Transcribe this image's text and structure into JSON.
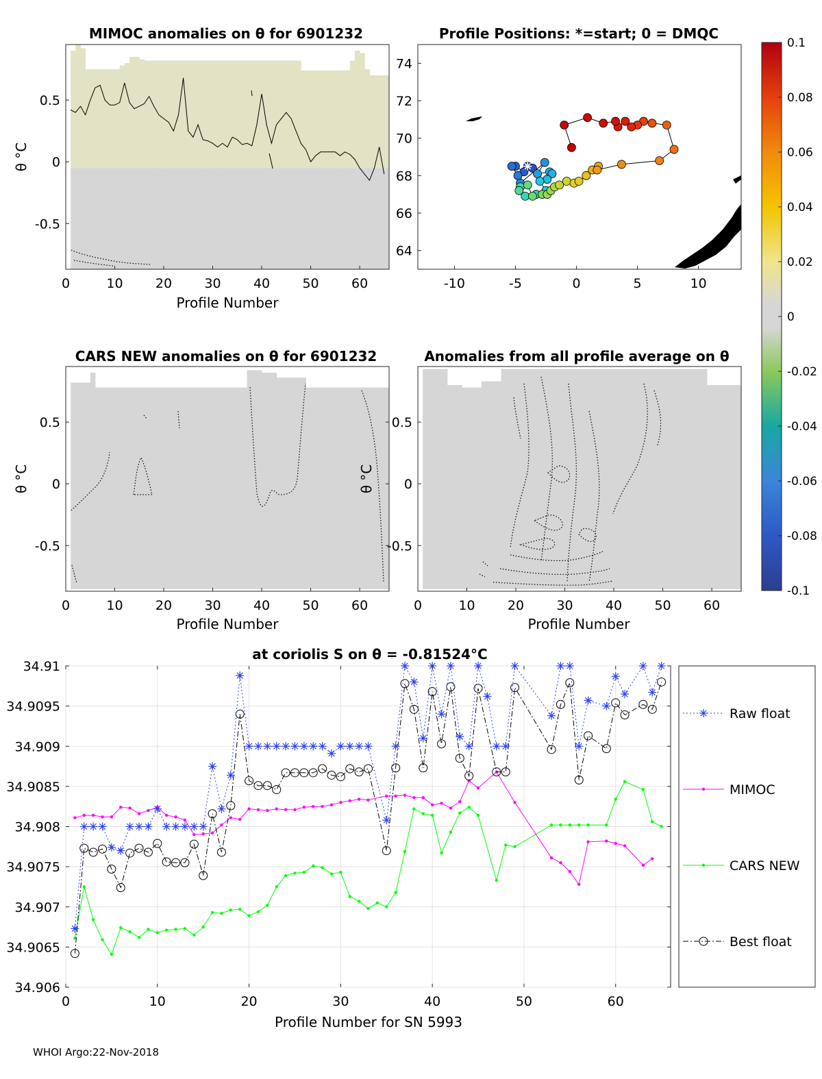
{
  "footer": "WHOI Argo:22-Nov-2018",
  "colors": {
    "raw_float": "#2a3ff0",
    "mimoc": "#ff00ff",
    "cars_new": "#00ff00",
    "best_float": "#000000",
    "anomaly_field": "#d6d6d6",
    "anomaly_field_warm": "#e2e2c4",
    "grid": "#e3e3e3"
  },
  "chart_data": [
    {
      "id": "mimoc-panel",
      "type": "heatmap",
      "title": "MIMOC anomalies on θ  for 6901232",
      "xlabel": "Profile Number",
      "ylabel": "θ °C",
      "xlim": [
        0,
        66
      ],
      "ylim": [
        -0.87,
        0.95
      ],
      "xticks": [
        "0",
        "10",
        "20",
        "30",
        "40",
        "50",
        "60"
      ],
      "yticks": [
        "0.5",
        "0",
        "-0.5"
      ],
      "ytick_values": [
        0.5,
        0,
        -0.5
      ],
      "xtick_values": [
        0,
        10,
        20,
        30,
        40,
        50,
        60
      ],
      "top_theta": [
        0.9,
        0.95,
        0.92,
        0.75,
        0.75,
        0.75,
        0.75,
        0.75,
        0.75,
        0.75,
        0.78,
        0.8,
        0.85,
        0.85,
        0.83,
        0.82,
        0.82,
        0.82,
        0.82,
        0.82,
        0.82,
        0.82,
        0.82,
        0.82,
        0.82,
        0.82,
        0.82,
        0.82,
        0.82,
        0.82,
        0.82,
        0.82,
        0.82,
        0.82,
        0.82,
        0.82,
        0.82,
        0.82,
        0.82,
        0.82,
        0.82,
        0.82,
        0.82,
        0.82,
        0.82,
        0.82,
        0.82,
        0.74,
        0.74,
        0.74,
        0.74,
        0.74,
        0.74,
        0.74,
        0.74,
        0.74,
        0.74,
        0.82,
        0.9,
        0.88,
        0.75,
        0.7,
        0.7,
        0.7,
        0.7
      ],
      "contour_line": [
        0.42,
        0.4,
        0.45,
        0.38,
        0.5,
        0.6,
        0.62,
        0.5,
        0.46,
        0.46,
        0.48,
        0.64,
        0.48,
        0.43,
        0.45,
        0.47,
        0.53,
        0.45,
        0.38,
        0.35,
        0.32,
        0.25,
        0.38,
        0.68,
        0.25,
        0.2,
        0.3,
        0.18,
        0.17,
        0.15,
        0.12,
        0.15,
        0.12,
        0.2,
        0.18,
        0.14,
        0.15,
        0.13,
        0.3,
        0.55,
        0.3,
        0.15,
        0.3,
        0.35,
        0.4,
        0.35,
        0.25,
        0.15,
        0.1,
        0.0,
        0.05,
        0.08,
        0.08,
        0.08,
        0.08,
        0.05,
        0.08,
        0.06,
        0.02,
        -0.05,
        -0.1,
        -0.15,
        -0.05,
        0.12,
        -0.1
      ]
    },
    {
      "id": "position-panel",
      "type": "scatter",
      "title": "Profile Positions: *=start; 0 = DMQC",
      "xlim": [
        -13,
        13.5
      ],
      "ylim": [
        63,
        75
      ],
      "xticks": [
        "-10",
        "-5",
        "0",
        "5",
        "10"
      ],
      "xtick_values": [
        -10,
        -5,
        0,
        5,
        10
      ],
      "yticks": [
        "64",
        "66",
        "68",
        "70",
        "72",
        "74"
      ],
      "ytick_values": [
        64,
        66,
        68,
        70,
        72,
        74
      ],
      "start": [
        -4,
        68.5
      ],
      "lon": [
        -4.0,
        -3.6,
        -4.3,
        -5.0,
        -5.3,
        -4.8,
        -4.6,
        -2.6,
        -3.2,
        -2.2,
        -2.0,
        -2.4,
        -3.0,
        -2.5,
        -3.3,
        -4.2,
        -4.6,
        -4.7,
        -4.0,
        -3.6,
        -2.8,
        -2.4,
        -2.1,
        -1.8,
        -1.4,
        -0.8,
        -0.2,
        0.2,
        0.8,
        1.3,
        1.8,
        1.7,
        3.7,
        6.8,
        8.0,
        7.4,
        6.2,
        5.5,
        5.0,
        4.5,
        4.0,
        3.4,
        3.2,
        2.2,
        0.9,
        -1.0,
        -0.4
      ],
      "lat": [
        68.5,
        68.4,
        68.2,
        68.5,
        68.5,
        68.0,
        67.6,
        68.7,
        68.1,
        68.2,
        68.1,
        67.8,
        67.7,
        67.2,
        67.0,
        66.9,
        67.4,
        67.2,
        67.5,
        66.9,
        67.0,
        67.0,
        67.2,
        67.4,
        67.5,
        67.7,
        67.6,
        67.7,
        68.0,
        68.3,
        68.5,
        68.3,
        68.6,
        68.8,
        69.4,
        70.7,
        70.8,
        70.9,
        70.7,
        70.6,
        70.9,
        70.6,
        70.9,
        70.8,
        71.1,
        70.7,
        69.5
      ],
      "colorbar": {
        "min": -0.1,
        "max": 0.1,
        "ticks": [
          "0.1",
          "0.08",
          "0.06",
          "0.04",
          "0.02",
          "0",
          "-0.02",
          "-0.04",
          "-0.06",
          "-0.08",
          "-0.1"
        ],
        "tick_values": [
          0.1,
          0.08,
          0.06,
          0.04,
          0.02,
          0,
          -0.02,
          -0.04,
          -0.06,
          -0.08,
          -0.1
        ]
      }
    },
    {
      "id": "cars-panel",
      "type": "heatmap",
      "title": "CARS NEW anomalies on θ for 6901232",
      "xlabel": "Profile Number",
      "ylabel": "θ °C",
      "xlim": [
        0,
        66
      ],
      "ylim": [
        -0.87,
        0.95
      ],
      "xticks": [
        "0",
        "10",
        "20",
        "30",
        "40",
        "50",
        "60"
      ],
      "xtick_values": [
        0,
        10,
        20,
        30,
        40,
        50,
        60
      ],
      "yticks": [
        "0.5",
        "0",
        "-0.5"
      ],
      "ytick_values": [
        0.5,
        0,
        -0.5
      ]
    },
    {
      "id": "avg-panel",
      "type": "heatmap",
      "title": "Anomalies from all profile average on θ",
      "xlabel": "Profile Number",
      "ylabel": "θ °C",
      "xlim": [
        0,
        66
      ],
      "ylim": [
        -0.87,
        0.95
      ],
      "xticks": [
        "0",
        "10",
        "20",
        "30",
        "40",
        "50",
        "60"
      ],
      "xtick_values": [
        0,
        10,
        20,
        30,
        40,
        50,
        60
      ],
      "yticks": [
        "0.5",
        "0",
        "-0.5"
      ],
      "ytick_values": [
        0.5,
        0,
        -0.5
      ]
    },
    {
      "id": "salinity-panel",
      "type": "line",
      "title": "at coriolis S on θ = -0.81524°C",
      "xlabel": "Profile Number for SN 5993",
      "ylabel": "",
      "xlim": [
        0,
        66
      ],
      "ylim": [
        34.906,
        34.91
      ],
      "xticks": [
        "0",
        "10",
        "20",
        "30",
        "40",
        "50",
        "60"
      ],
      "xtick_values": [
        0,
        10,
        20,
        30,
        40,
        50,
        60
      ],
      "yticks": [
        "34.91",
        "34.9095",
        "34.909",
        "34.9085",
        "34.908",
        "34.9075",
        "34.907",
        "34.9065",
        "34.906"
      ],
      "ytick_values": [
        34.91,
        34.9095,
        34.909,
        34.9085,
        34.908,
        34.9075,
        34.907,
        34.9065,
        34.906
      ],
      "grid": true,
      "legend": [
        "Raw float",
        "MIMOC",
        "CARS NEW",
        "Best float"
      ],
      "series": [
        {
          "name": "Raw float",
          "x": [
            1,
            2,
            3,
            4,
            5,
            6,
            7,
            8,
            9,
            10,
            11,
            12,
            13,
            14,
            15,
            16,
            17,
            18,
            19,
            20,
            21,
            22,
            23,
            24,
            25,
            26,
            27,
            28,
            29,
            30,
            31,
            32,
            33,
            35,
            36,
            37,
            38,
            39,
            40,
            41,
            42,
            43,
            44,
            45,
            46,
            47,
            48,
            49,
            53,
            54,
            55,
            56,
            57,
            59,
            60,
            61,
            63,
            64,
            65
          ],
          "y": [
            34.90673,
            34.908,
            34.908,
            34.908,
            34.90774,
            34.9077,
            34.908,
            34.908,
            34.908,
            34.90822,
            34.908,
            34.908,
            34.908,
            34.908,
            34.908,
            34.90875,
            34.90822,
            34.90864,
            34.90988,
            34.909,
            34.909,
            34.909,
            34.909,
            34.909,
            34.909,
            34.909,
            34.909,
            34.909,
            34.90891,
            34.909,
            34.909,
            34.909,
            34.909,
            34.90808,
            34.909,
            34.91,
            34.9098,
            34.9091,
            34.91,
            34.9094,
            34.91,
            34.90912,
            34.909,
            34.91,
            34.90962,
            34.909,
            34.909,
            34.91,
            34.90938,
            34.91,
            34.91,
            34.909,
            34.90957,
            34.9095,
            34.90987,
            34.90965,
            34.91,
            34.90967,
            34.91
          ]
        },
        {
          "name": "MIMOC",
          "x": [
            1,
            2,
            3,
            4,
            5,
            6,
            7,
            8,
            9,
            10,
            11,
            12,
            13,
            14,
            15,
            16,
            17,
            18,
            19,
            20,
            21,
            22,
            23,
            24,
            25,
            26,
            27,
            28,
            29,
            30,
            31,
            32,
            33,
            35,
            36,
            37,
            38,
            39,
            40,
            41,
            42,
            43,
            44,
            45,
            47,
            49,
            53,
            54,
            55,
            56,
            57,
            59,
            60,
            61,
            63,
            64
          ],
          "y": [
            34.90811,
            34.90814,
            34.90814,
            34.90812,
            34.90812,
            34.90824,
            34.90823,
            34.90816,
            34.9082,
            34.90824,
            34.90814,
            34.90812,
            34.90808,
            34.9079,
            34.90791,
            34.90792,
            34.90802,
            34.90811,
            34.90809,
            34.90822,
            34.90821,
            34.9082,
            34.90822,
            34.90821,
            34.90821,
            34.90824,
            34.90825,
            34.90825,
            34.90827,
            34.9083,
            34.90832,
            34.90834,
            34.90833,
            34.90838,
            34.90838,
            34.90839,
            34.90836,
            34.90836,
            34.90827,
            34.90829,
            34.90823,
            34.90831,
            34.90857,
            34.90848,
            34.90868,
            34.9083,
            34.90761,
            34.90755,
            34.90744,
            34.90728,
            34.90781,
            34.90782,
            34.90779,
            34.90776,
            34.90752,
            34.9076
          ]
        },
        {
          "name": "CARS NEW",
          "x": [
            1,
            2,
            3,
            4,
            5,
            6,
            7,
            8,
            9,
            10,
            11,
            12,
            13,
            14,
            15,
            16,
            17,
            18,
            19,
            20,
            21,
            22,
            23,
            24,
            25,
            26,
            27,
            28,
            29,
            30,
            31,
            32,
            33,
            34,
            35,
            36,
            37,
            38,
            39,
            40,
            41,
            42,
            43,
            44,
            45,
            47,
            48,
            49,
            53,
            54,
            55,
            56,
            57,
            59,
            60,
            61,
            63,
            64,
            65
          ],
          "y": [
            34.90661,
            34.90725,
            34.90684,
            34.90659,
            34.90641,
            34.90674,
            34.90669,
            34.90662,
            34.90672,
            34.90668,
            34.90671,
            34.90672,
            34.90673,
            34.90665,
            34.90675,
            34.90693,
            34.90692,
            34.90696,
            34.90697,
            34.90689,
            34.90694,
            34.90702,
            34.90725,
            34.90739,
            34.90742,
            34.90743,
            34.90751,
            34.90749,
            34.90741,
            34.90743,
            34.90713,
            34.90707,
            34.90698,
            34.90705,
            34.907,
            34.90718,
            34.90769,
            34.90822,
            34.90816,
            34.90814,
            34.90767,
            34.90793,
            34.90817,
            34.90824,
            34.90814,
            34.90733,
            34.90777,
            34.90775,
            34.90802,
            34.90802,
            34.90802,
            34.90802,
            34.90802,
            34.90802,
            34.90834,
            34.90856,
            34.90846,
            34.90806,
            34.908
          ]
        },
        {
          "name": "Best float",
          "x": [
            1,
            2,
            3,
            4,
            5,
            6,
            7,
            8,
            9,
            10,
            11,
            12,
            13,
            14,
            15,
            16,
            17,
            18,
            19,
            20,
            21,
            22,
            23,
            24,
            25,
            26,
            27,
            28,
            29,
            30,
            31,
            32,
            33,
            35,
            36,
            37,
            38,
            39,
            40,
            41,
            42,
            43,
            44,
            45,
            47,
            48,
            49,
            53,
            54,
            55,
            56,
            57,
            59,
            60,
            61,
            63,
            64,
            65
          ],
          "y": [
            34.90642,
            34.90773,
            34.90768,
            34.90772,
            34.90747,
            34.90724,
            34.90767,
            34.90773,
            34.90768,
            34.90779,
            34.90756,
            34.90755,
            34.90755,
            34.90778,
            34.90739,
            34.90816,
            34.90768,
            34.90826,
            34.9094,
            34.90857,
            34.90851,
            34.90851,
            34.90846,
            34.90867,
            34.90867,
            34.90867,
            34.90867,
            34.90872,
            34.90864,
            34.90862,
            34.90872,
            34.90868,
            34.90872,
            34.9077,
            34.90873,
            34.90978,
            34.90946,
            34.90873,
            34.90968,
            34.90903,
            34.90974,
            34.90885,
            34.90863,
            34.90972,
            34.90868,
            34.90868,
            34.90973,
            34.90896,
            34.90952,
            34.90979,
            34.90858,
            34.90913,
            34.90897,
            34.90954,
            34.90939,
            34.90952,
            34.90946,
            34.9098
          ]
        }
      ]
    }
  ]
}
